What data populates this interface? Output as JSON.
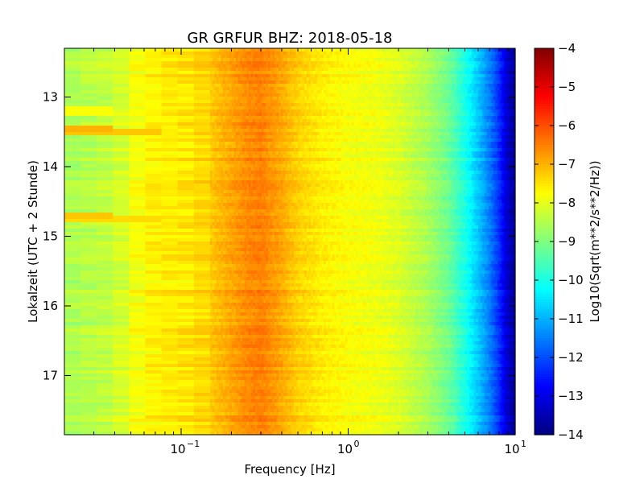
{
  "chart_data": {
    "type": "heatmap",
    "title": "GR GRFUR BHZ: 2018-05-18",
    "xlabel": "Frequency [Hz]",
    "ylabel": "Lokalzeit (UTC + 2 Stunde)",
    "x_scale": "log",
    "xlim": [
      0.02,
      10
    ],
    "x_ticks": [
      {
        "value": 0.1,
        "base": "10",
        "exp": "−1"
      },
      {
        "value": 1,
        "base": "10",
        "exp": "0"
      },
      {
        "value": 10,
        "base": "10",
        "exp": "1"
      }
    ],
    "ylim": [
      12.3,
      17.85
    ],
    "y_inverted": true,
    "y_ticks": [
      {
        "value": 13,
        "label": "13"
      },
      {
        "value": 14,
        "label": "14"
      },
      {
        "value": 15,
        "label": "15"
      },
      {
        "value": 16,
        "label": "16"
      },
      {
        "value": 17,
        "label": "17"
      }
    ],
    "colorbar": {
      "label": "Log10(Sqrt(m**2/s**2/Hz))",
      "range": [
        -14,
        -4
      ],
      "colormap": "jet",
      "ticks": [
        {
          "value": -4,
          "label": "−4"
        },
        {
          "value": -5,
          "label": "−5"
        },
        {
          "value": -6,
          "label": "−6"
        },
        {
          "value": -7,
          "label": "−7"
        },
        {
          "value": -8,
          "label": "−8"
        },
        {
          "value": -9,
          "label": "−9"
        },
        {
          "value": -10,
          "label": "−10"
        },
        {
          "value": -11,
          "label": "−11"
        },
        {
          "value": -12,
          "label": "−12"
        },
        {
          "value": -13,
          "label": "−13"
        },
        {
          "value": -14,
          "label": "−14"
        }
      ]
    },
    "spectrum_profile": {
      "frequency_hz": [
        0.02,
        0.04,
        0.06,
        0.08,
        0.12,
        0.18,
        0.25,
        0.3,
        0.4,
        0.5,
        0.7,
        1.0,
        1.5,
        2.0,
        3.0,
        4.0,
        5.0,
        6.0,
        7.0,
        8.0,
        9.0,
        10.0
      ],
      "level": [
        -8.6,
        -8.3,
        -7.7,
        -7.6,
        -7.5,
        -7.0,
        -6.6,
        -6.5,
        -6.9,
        -7.3,
        -7.6,
        -7.8,
        -7.9,
        -8.1,
        -8.6,
        -9.2,
        -10.0,
        -10.8,
        -11.5,
        -12.3,
        -13.3,
        -13.8
      ]
    },
    "events": [
      {
        "time": 13.2,
        "fmax": 0.04,
        "level": -7.8
      },
      {
        "time": 13.45,
        "fmax": 0.04,
        "level": -7.0
      },
      {
        "time": 13.5,
        "fmax": 0.08,
        "level": -7.2
      },
      {
        "time": 14.7,
        "fmax": 0.04,
        "level": -7.2
      },
      {
        "time": 14.75,
        "fmax": 0.08,
        "level": -7.4
      }
    ]
  }
}
